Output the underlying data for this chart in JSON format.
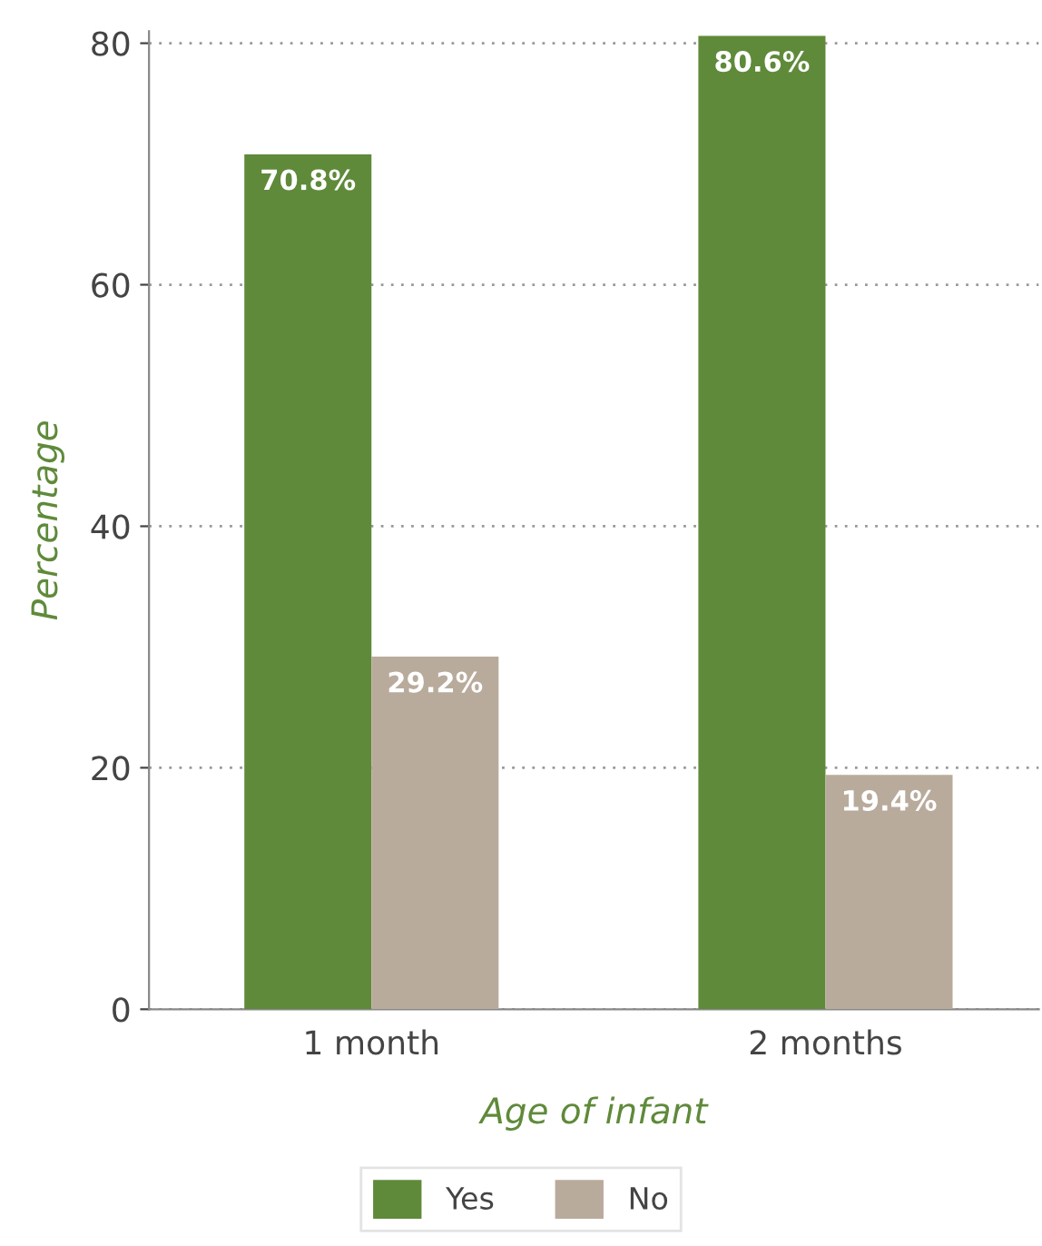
{
  "chart_data": {
    "type": "bar",
    "xlabel": "Age of infant",
    "ylabel": "Percentage",
    "categories": [
      "1 month",
      "2 months"
    ],
    "series": [
      {
        "name": "Yes",
        "color": "#5f8a3a",
        "values": [
          70.8,
          80.6
        ],
        "value_labels": [
          "70.8%",
          "80.6%"
        ]
      },
      {
        "name": "No",
        "color": "#b9ab9c",
        "values": [
          29.2,
          19.4
        ],
        "value_labels": [
          "29.2%",
          "19.4%"
        ]
      }
    ],
    "ylim": [
      0,
      81
    ],
    "yticks": [
      0,
      20,
      40,
      60,
      80
    ],
    "grid": "y",
    "legend": "bottom"
  }
}
